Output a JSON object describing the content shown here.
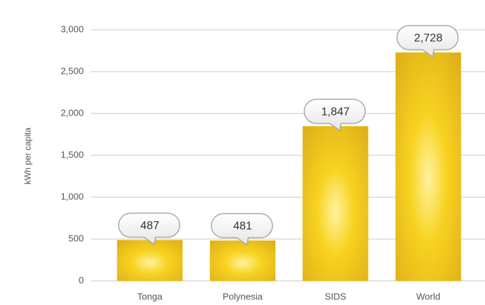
{
  "chart_data": {
    "type": "bar",
    "y_label": "kWh per capita",
    "categories": [
      "Tonga",
      "Polynesia",
      "SIDS",
      "World"
    ],
    "values": [
      487,
      481,
      1847,
      2728
    ],
    "value_labels": [
      "487",
      "481",
      "1,847",
      "2,728"
    ],
    "color": "#f0c418",
    "ylim": [
      0,
      3000
    ],
    "yticks": [
      0,
      {
        "value": 500,
        "label": "500"
      },
      {
        "value": 1000,
        "label": "1,000"
      },
      {
        "value": 1500,
        "label": "1,500"
      },
      {
        "value": 2000,
        "label": "2,000"
      },
      {
        "value": 2500,
        "label": "2,500"
      },
      {
        "value": 3000,
        "label": "3,000"
      }
    ],
    "grid": true
  }
}
